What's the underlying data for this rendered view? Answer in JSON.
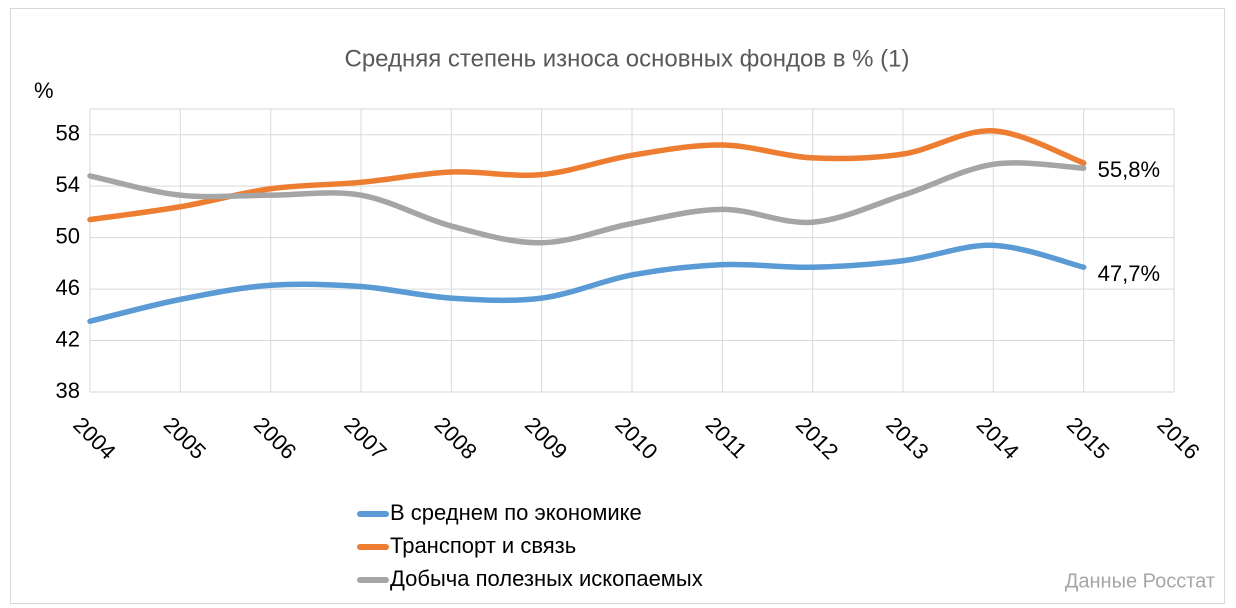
{
  "chart_data": {
    "type": "line",
    "title": "Средняя степень износа основных фондов в % (1)",
    "y_axis_label": "%",
    "source": "Данные Росстат",
    "x": [
      2004,
      2005,
      2006,
      2007,
      2008,
      2009,
      2010,
      2011,
      2012,
      2013,
      2014,
      2015
    ],
    "series": [
      {
        "name": "В среднем  по экономике",
        "color": "#5b9bd5",
        "values": [
          43.5,
          45.2,
          46.3,
          46.2,
          45.3,
          45.3,
          47.1,
          47.9,
          47.7,
          48.2,
          49.4,
          47.7
        ],
        "value_labels": [
          null,
          null,
          null,
          null,
          null,
          null,
          null,
          null,
          null,
          null,
          null,
          "47,7%"
        ]
      },
      {
        "name": "Транспорт и связь",
        "color": "#ed7d31",
        "values": [
          51.4,
          52.4,
          53.8,
          54.3,
          55.1,
          54.9,
          56.4,
          57.2,
          56.2,
          56.5,
          58.3,
          55.8
        ],
        "value_labels": [
          null,
          null,
          null,
          null,
          null,
          null,
          null,
          null,
          null,
          null,
          null,
          "55,8%"
        ]
      },
      {
        "name": "Добыча полезных ископаемых",
        "color": "#a5a5a5",
        "values": [
          54.8,
          53.3,
          53.3,
          53.3,
          50.9,
          49.6,
          51.1,
          52.2,
          51.2,
          53.3,
          55.7,
          55.4
        ]
      }
    ],
    "xlim": [
      2004,
      2016
    ],
    "xticks": [
      2004,
      2005,
      2006,
      2007,
      2008,
      2009,
      2010,
      2011,
      2012,
      2013,
      2014,
      2015,
      2016
    ],
    "ylim": [
      38,
      60
    ],
    "yticks": [
      38,
      42,
      46,
      50,
      54,
      58
    ],
    "grid": true,
    "smooth": true,
    "legend": "bottom"
  }
}
